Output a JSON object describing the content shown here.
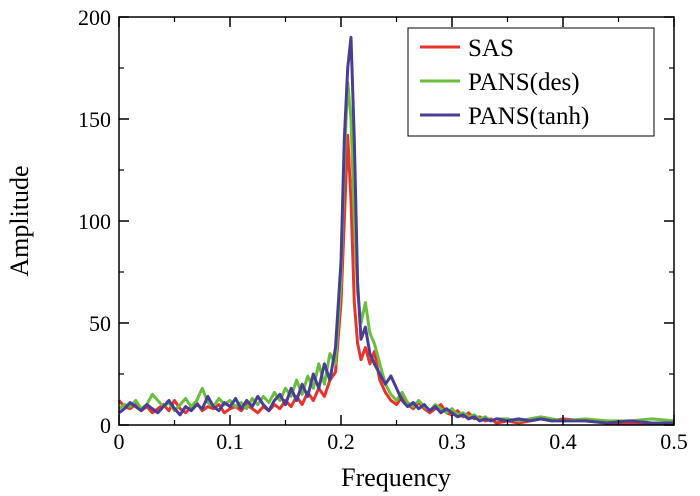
{
  "chart_data": {
    "type": "line",
    "title": "",
    "xlabel": "Frequency",
    "ylabel": "Amplitude",
    "xlim": [
      0,
      0.5
    ],
    "ylim": [
      0,
      200
    ],
    "grid": false,
    "legend_position": "top-right",
    "x_ticks": [
      0,
      0.1,
      0.2,
      0.3,
      0.4,
      0.5
    ],
    "x_tick_labels": [
      "0",
      "0.1",
      "0.2",
      "0.3",
      "0.4",
      "0.5"
    ],
    "y_ticks": [
      0,
      50,
      100,
      150,
      200
    ],
    "y_tick_labels": [
      "0",
      "50",
      "100",
      "150",
      "200"
    ],
    "series": [
      {
        "name": "SAS",
        "color": "#e8332a",
        "points": [
          [
            0,
            12
          ],
          [
            0.005,
            9
          ],
          [
            0.01,
            8
          ],
          [
            0.015,
            10
          ],
          [
            0.02,
            7
          ],
          [
            0.025,
            9
          ],
          [
            0.03,
            6
          ],
          [
            0.035,
            8
          ],
          [
            0.04,
            10
          ],
          [
            0.045,
            7
          ],
          [
            0.05,
            12
          ],
          [
            0.055,
            8
          ],
          [
            0.06,
            6
          ],
          [
            0.065,
            9
          ],
          [
            0.07,
            11
          ],
          [
            0.075,
            7
          ],
          [
            0.08,
            9
          ],
          [
            0.085,
            8
          ],
          [
            0.09,
            10
          ],
          [
            0.095,
            6
          ],
          [
            0.1,
            8
          ],
          [
            0.105,
            9
          ],
          [
            0.11,
            7
          ],
          [
            0.115,
            10
          ],
          [
            0.12,
            8
          ],
          [
            0.125,
            6
          ],
          [
            0.13,
            9
          ],
          [
            0.135,
            7
          ],
          [
            0.14,
            10
          ],
          [
            0.145,
            8
          ],
          [
            0.15,
            12
          ],
          [
            0.155,
            9
          ],
          [
            0.16,
            14
          ],
          [
            0.165,
            10
          ],
          [
            0.17,
            16
          ],
          [
            0.175,
            12
          ],
          [
            0.18,
            18
          ],
          [
            0.185,
            14
          ],
          [
            0.19,
            22
          ],
          [
            0.195,
            26
          ],
          [
            0.2,
            60
          ],
          [
            0.203,
            100
          ],
          [
            0.206,
            142
          ],
          [
            0.209,
            110
          ],
          [
            0.212,
            60
          ],
          [
            0.215,
            40
          ],
          [
            0.218,
            32
          ],
          [
            0.222,
            38
          ],
          [
            0.226,
            30
          ],
          [
            0.23,
            36
          ],
          [
            0.235,
            22
          ],
          [
            0.24,
            16
          ],
          [
            0.245,
            12
          ],
          [
            0.25,
            10
          ],
          [
            0.255,
            14
          ],
          [
            0.26,
            10
          ],
          [
            0.265,
            8
          ],
          [
            0.27,
            11
          ],
          [
            0.275,
            8
          ],
          [
            0.28,
            6
          ],
          [
            0.285,
            8
          ],
          [
            0.29,
            10
          ],
          [
            0.295,
            6
          ],
          [
            0.3,
            5
          ],
          [
            0.305,
            7
          ],
          [
            0.31,
            4
          ],
          [
            0.315,
            6
          ],
          [
            0.32,
            3
          ],
          [
            0.325,
            4
          ],
          [
            0.33,
            2
          ],
          [
            0.335,
            3
          ],
          [
            0.34,
            1
          ],
          [
            0.35,
            2
          ],
          [
            0.36,
            1
          ],
          [
            0.37,
            2
          ],
          [
            0.38,
            3
          ],
          [
            0.39,
            2
          ],
          [
            0.4,
            3
          ],
          [
            0.42,
            2
          ],
          [
            0.44,
            1
          ],
          [
            0.46,
            1
          ],
          [
            0.48,
            1
          ],
          [
            0.5,
            1
          ]
        ]
      },
      {
        "name": "PANS(des)",
        "color": "#6bbd3e",
        "points": [
          [
            0,
            8
          ],
          [
            0.005,
            10
          ],
          [
            0.01,
            9
          ],
          [
            0.015,
            12
          ],
          [
            0.02,
            8
          ],
          [
            0.025,
            10
          ],
          [
            0.03,
            15
          ],
          [
            0.035,
            12
          ],
          [
            0.04,
            9
          ],
          [
            0.045,
            11
          ],
          [
            0.05,
            7
          ],
          [
            0.055,
            10
          ],
          [
            0.06,
            13
          ],
          [
            0.065,
            9
          ],
          [
            0.07,
            12
          ],
          [
            0.075,
            18
          ],
          [
            0.08,
            11
          ],
          [
            0.085,
            9
          ],
          [
            0.09,
            13
          ],
          [
            0.095,
            10
          ],
          [
            0.1,
            12
          ],
          [
            0.105,
            9
          ],
          [
            0.11,
            11
          ],
          [
            0.115,
            8
          ],
          [
            0.12,
            13
          ],
          [
            0.125,
            10
          ],
          [
            0.13,
            14
          ],
          [
            0.135,
            11
          ],
          [
            0.14,
            16
          ],
          [
            0.145,
            12
          ],
          [
            0.15,
            18
          ],
          [
            0.155,
            14
          ],
          [
            0.16,
            22
          ],
          [
            0.165,
            15
          ],
          [
            0.17,
            24
          ],
          [
            0.175,
            18
          ],
          [
            0.18,
            30
          ],
          [
            0.185,
            20
          ],
          [
            0.19,
            35
          ],
          [
            0.195,
            30
          ],
          [
            0.2,
            70
          ],
          [
            0.203,
            130
          ],
          [
            0.206,
            168
          ],
          [
            0.209,
            150
          ],
          [
            0.212,
            100
          ],
          [
            0.215,
            65
          ],
          [
            0.218,
            50
          ],
          [
            0.222,
            60
          ],
          [
            0.226,
            45
          ],
          [
            0.23,
            40
          ],
          [
            0.235,
            30
          ],
          [
            0.24,
            20
          ],
          [
            0.245,
            15
          ],
          [
            0.25,
            12
          ],
          [
            0.255,
            16
          ],
          [
            0.26,
            11
          ],
          [
            0.265,
            9
          ],
          [
            0.27,
            12
          ],
          [
            0.275,
            9
          ],
          [
            0.28,
            7
          ],
          [
            0.285,
            10
          ],
          [
            0.29,
            8
          ],
          [
            0.295,
            6
          ],
          [
            0.3,
            8
          ],
          [
            0.305,
            5
          ],
          [
            0.31,
            6
          ],
          [
            0.315,
            4
          ],
          [
            0.32,
            5
          ],
          [
            0.325,
            3
          ],
          [
            0.33,
            4
          ],
          [
            0.335,
            2
          ],
          [
            0.34,
            3
          ],
          [
            0.35,
            3
          ],
          [
            0.36,
            2
          ],
          [
            0.37,
            3
          ],
          [
            0.38,
            4
          ],
          [
            0.39,
            3
          ],
          [
            0.4,
            2
          ],
          [
            0.42,
            3
          ],
          [
            0.44,
            2
          ],
          [
            0.46,
            2
          ],
          [
            0.48,
            3
          ],
          [
            0.5,
            2
          ]
        ]
      },
      {
        "name": "PANS(tanh)",
        "color": "#4a3d96",
        "points": [
          [
            0,
            6
          ],
          [
            0.005,
            8
          ],
          [
            0.01,
            11
          ],
          [
            0.015,
            9
          ],
          [
            0.02,
            7
          ],
          [
            0.025,
            10
          ],
          [
            0.03,
            8
          ],
          [
            0.035,
            6
          ],
          [
            0.04,
            9
          ],
          [
            0.045,
            12
          ],
          [
            0.05,
            8
          ],
          [
            0.055,
            5
          ],
          [
            0.06,
            9
          ],
          [
            0.065,
            7
          ],
          [
            0.07,
            10
          ],
          [
            0.075,
            8
          ],
          [
            0.08,
            14
          ],
          [
            0.085,
            9
          ],
          [
            0.09,
            7
          ],
          [
            0.095,
            11
          ],
          [
            0.1,
            9
          ],
          [
            0.105,
            13
          ],
          [
            0.11,
            8
          ],
          [
            0.115,
            12
          ],
          [
            0.12,
            9
          ],
          [
            0.125,
            14
          ],
          [
            0.13,
            10
          ],
          [
            0.135,
            7
          ],
          [
            0.14,
            12
          ],
          [
            0.145,
            15
          ],
          [
            0.15,
            10
          ],
          [
            0.155,
            18
          ],
          [
            0.16,
            12
          ],
          [
            0.165,
            20
          ],
          [
            0.17,
            14
          ],
          [
            0.175,
            25
          ],
          [
            0.18,
            18
          ],
          [
            0.185,
            30
          ],
          [
            0.19,
            22
          ],
          [
            0.195,
            38
          ],
          [
            0.2,
            80
          ],
          [
            0.203,
            140
          ],
          [
            0.206,
            175
          ],
          [
            0.209,
            190
          ],
          [
            0.212,
            140
          ],
          [
            0.215,
            70
          ],
          [
            0.218,
            42
          ],
          [
            0.222,
            48
          ],
          [
            0.226,
            35
          ],
          [
            0.23,
            30
          ],
          [
            0.235,
            25
          ],
          [
            0.24,
            20
          ],
          [
            0.245,
            24
          ],
          [
            0.25,
            18
          ],
          [
            0.255,
            12
          ],
          [
            0.26,
            9
          ],
          [
            0.265,
            11
          ],
          [
            0.27,
            8
          ],
          [
            0.275,
            10
          ],
          [
            0.28,
            7
          ],
          [
            0.285,
            9
          ],
          [
            0.29,
            6
          ],
          [
            0.295,
            8
          ],
          [
            0.3,
            6
          ],
          [
            0.305,
            4
          ],
          [
            0.31,
            5
          ],
          [
            0.315,
            3
          ],
          [
            0.32,
            4
          ],
          [
            0.325,
            2
          ],
          [
            0.33,
            3
          ],
          [
            0.335,
            2
          ],
          [
            0.34,
            3
          ],
          [
            0.35,
            2
          ],
          [
            0.36,
            3
          ],
          [
            0.37,
            2
          ],
          [
            0.38,
            3
          ],
          [
            0.39,
            2
          ],
          [
            0.4,
            2
          ],
          [
            0.42,
            2
          ],
          [
            0.44,
            1
          ],
          [
            0.46,
            2
          ],
          [
            0.48,
            1
          ],
          [
            0.5,
            1
          ]
        ]
      }
    ]
  }
}
